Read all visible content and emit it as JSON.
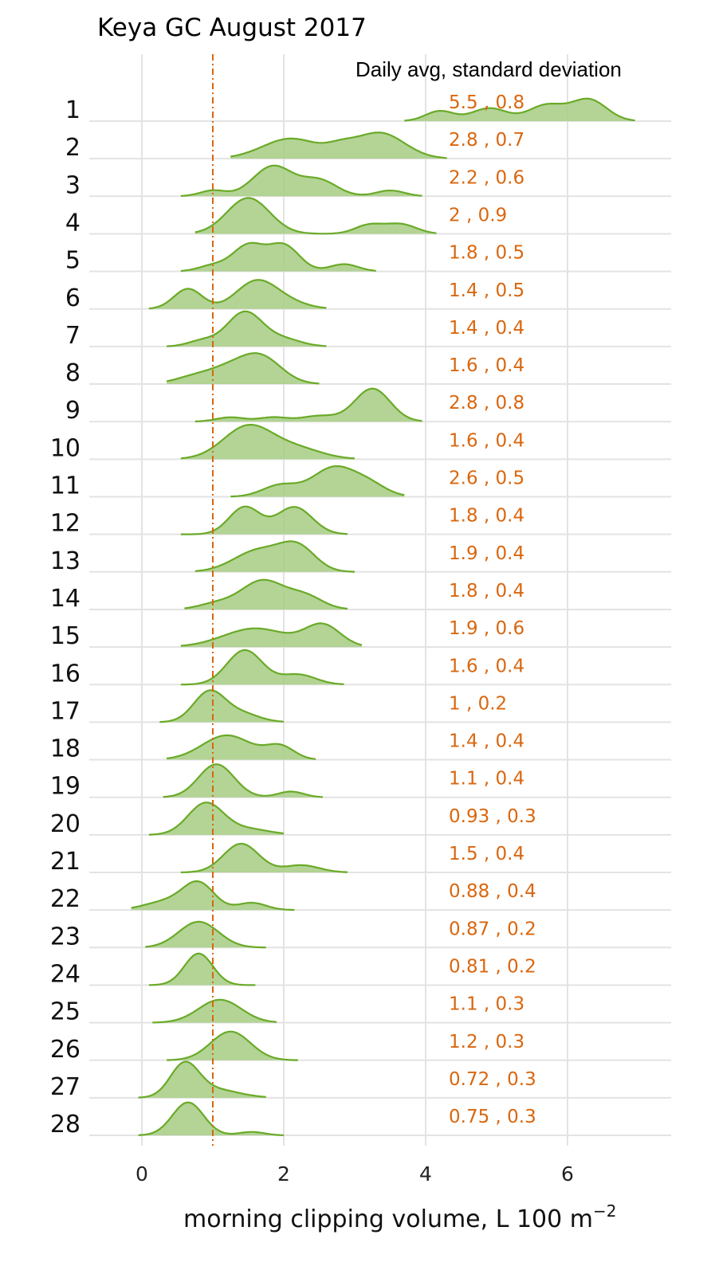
{
  "chart_data": {
    "type": "ridgeline",
    "title": "Keya GC August 2017",
    "subtitle": "Daily avg, standard deviation",
    "xlabel": "morning clipping volume, L 100 m",
    "xlabel_superscript": "−2",
    "xlim": [
      -0.7,
      7.5
    ],
    "xticks": [
      0,
      2,
      4,
      6
    ],
    "reference_line": 1,
    "colors": {
      "fill": "#a6cd82",
      "stroke": "#6aaa28",
      "reference": "#d9670f",
      "stat_text": "#d9670f",
      "grid": "#e3e3e3"
    },
    "rows": [
      {
        "day": "1",
        "stat": "5.5 , 0.8",
        "range": [
          3.7,
          6.95
        ],
        "peaks": [
          [
            4.2,
            0.35,
            0.2
          ],
          [
            4.9,
            0.45,
            0.25
          ],
          [
            5.7,
            0.55,
            0.25
          ],
          [
            6.3,
            0.75,
            0.25
          ]
        ]
      },
      {
        "day": "2",
        "stat": "2.8 , 0.7",
        "range": [
          1.25,
          4.3
        ],
        "peaks": [
          [
            2.1,
            0.7,
            0.4
          ],
          [
            2.8,
            0.25,
            0.2
          ],
          [
            3.35,
            0.9,
            0.35
          ]
        ]
      },
      {
        "day": "3",
        "stat": "2.2 , 0.6",
        "range": [
          0.55,
          3.95
        ],
        "peaks": [
          [
            1.0,
            0.2,
            0.18
          ],
          [
            1.85,
            1.05,
            0.28
          ],
          [
            2.5,
            0.55,
            0.25
          ],
          [
            3.5,
            0.2,
            0.2
          ]
        ]
      },
      {
        "day": "4",
        "stat": "2 , 0.9",
        "range": [
          0.75,
          4.15
        ],
        "peaks": [
          [
            1.5,
            1.25,
            0.3
          ],
          [
            3.2,
            0.3,
            0.2
          ],
          [
            3.65,
            0.33,
            0.22
          ]
        ]
      },
      {
        "day": "5",
        "stat": "1.8 , 0.5",
        "range": [
          0.55,
          3.3
        ],
        "peaks": [
          [
            1.0,
            0.2,
            0.2
          ],
          [
            1.5,
            0.9,
            0.22
          ],
          [
            2.0,
            0.9,
            0.22
          ],
          [
            2.85,
            0.25,
            0.2
          ]
        ]
      },
      {
        "day": "6",
        "stat": "1.4 , 0.5",
        "range": [
          0.1,
          2.6
        ],
        "peaks": [
          [
            0.65,
            0.7,
            0.2
          ],
          [
            1.6,
            0.9,
            0.28
          ],
          [
            2.0,
            0.25,
            0.3
          ]
        ]
      },
      {
        "day": "7",
        "stat": "1.4 , 0.4",
        "range": [
          0.35,
          2.6
        ],
        "peaks": [
          [
            0.85,
            0.2,
            0.2
          ],
          [
            1.45,
            1.2,
            0.25
          ],
          [
            2.0,
            0.25,
            0.25
          ]
        ]
      },
      {
        "day": "8",
        "stat": "1.6 , 0.4",
        "range": [
          0.35,
          2.5
        ],
        "peaks": [
          [
            0.8,
            0.3,
            0.3
          ],
          [
            1.65,
            1.0,
            0.3
          ],
          [
            1.2,
            0.3,
            0.25
          ]
        ]
      },
      {
        "day": "9",
        "stat": "2.8 , 0.8",
        "range": [
          0.75,
          3.95
        ],
        "peaks": [
          [
            1.25,
            0.15,
            0.2
          ],
          [
            1.85,
            0.15,
            0.2
          ],
          [
            2.5,
            0.2,
            0.25
          ],
          [
            3.25,
            1.15,
            0.25
          ]
        ]
      },
      {
        "day": "10",
        "stat": "1.6 , 0.4",
        "range": [
          0.55,
          3.0
        ],
        "peaks": [
          [
            1.5,
            1.15,
            0.35
          ],
          [
            2.2,
            0.35,
            0.35
          ]
        ]
      },
      {
        "day": "11",
        "stat": "2.6 , 0.5",
        "range": [
          1.25,
          3.7
        ],
        "peaks": [
          [
            1.95,
            0.4,
            0.25
          ],
          [
            2.7,
            1.0,
            0.3
          ],
          [
            3.2,
            0.4,
            0.25
          ]
        ]
      },
      {
        "day": "12",
        "stat": "1.8 , 0.4",
        "range": [
          0.55,
          2.9
        ],
        "peaks": [
          [
            1.45,
            0.95,
            0.22
          ],
          [
            2.15,
            0.95,
            0.25
          ]
        ]
      },
      {
        "day": "13",
        "stat": "1.9 , 0.4",
        "range": [
          0.75,
          3.0
        ],
        "peaks": [
          [
            1.65,
            0.75,
            0.35
          ],
          [
            2.2,
            0.8,
            0.25
          ]
        ]
      },
      {
        "day": "14",
        "stat": "1.8 , 0.4",
        "range": [
          0.6,
          2.9
        ],
        "peaks": [
          [
            1.7,
            1.0,
            0.3
          ],
          [
            2.3,
            0.45,
            0.25
          ],
          [
            1.05,
            0.2,
            0.25
          ]
        ]
      },
      {
        "day": "15",
        "stat": "1.9 , 0.6",
        "range": [
          0.55,
          3.1
        ],
        "peaks": [
          [
            1.6,
            0.65,
            0.45
          ],
          [
            2.55,
            0.75,
            0.25
          ]
        ]
      },
      {
        "day": "16",
        "stat": "1.6 , 0.4",
        "range": [
          0.55,
          2.85
        ],
        "peaks": [
          [
            1.45,
            1.2,
            0.25
          ],
          [
            2.2,
            0.35,
            0.25
          ]
        ]
      },
      {
        "day": "17",
        "stat": "1 , 0.2",
        "range": [
          0.25,
          2.0
        ],
        "peaks": [
          [
            0.95,
            1.05,
            0.22
          ],
          [
            1.4,
            0.3,
            0.25
          ]
        ]
      },
      {
        "day": "18",
        "stat": "1.4 , 0.4",
        "range": [
          0.35,
          2.45
        ],
        "peaks": [
          [
            1.2,
            0.85,
            0.35
          ],
          [
            1.95,
            0.45,
            0.2
          ]
        ]
      },
      {
        "day": "19",
        "stat": "1.1 , 0.4",
        "range": [
          0.3,
          2.55
        ],
        "peaks": [
          [
            1.05,
            1.15,
            0.25
          ],
          [
            2.1,
            0.2,
            0.18
          ]
        ]
      },
      {
        "day": "20",
        "stat": "0.93 , 0.3",
        "range": [
          0.1,
          2.0
        ],
        "peaks": [
          [
            0.9,
            1.1,
            0.25
          ],
          [
            1.5,
            0.2,
            0.3
          ]
        ]
      },
      {
        "day": "21",
        "stat": "1.5 , 0.4",
        "range": [
          0.55,
          2.9
        ],
        "peaks": [
          [
            1.4,
            1.0,
            0.25
          ],
          [
            2.25,
            0.25,
            0.25
          ]
        ]
      },
      {
        "day": "22",
        "stat": "0.88 , 0.4",
        "range": [
          -0.15,
          2.15
        ],
        "peaks": [
          [
            0.8,
            0.9,
            0.22
          ],
          [
            0.35,
            0.3,
            0.3
          ],
          [
            1.55,
            0.25,
            0.2
          ]
        ]
      },
      {
        "day": "23",
        "stat": "0.87 , 0.2",
        "range": [
          0.05,
          1.75
        ],
        "peaks": [
          [
            0.8,
            0.9,
            0.28
          ]
        ]
      },
      {
        "day": "24",
        "stat": "0.81 , 0.2",
        "range": [
          0.1,
          1.6
        ],
        "peaks": [
          [
            0.8,
            1.1,
            0.2
          ]
        ]
      },
      {
        "day": "25",
        "stat": "1.1 , 0.3",
        "range": [
          0.15,
          1.9
        ],
        "peaks": [
          [
            1.1,
            0.8,
            0.3
          ]
        ]
      },
      {
        "day": "26",
        "stat": "1.2 , 0.3",
        "range": [
          0.35,
          2.2
        ],
        "peaks": [
          [
            1.25,
            1.0,
            0.28
          ]
        ]
      },
      {
        "day": "27",
        "stat": "0.72 , 0.3",
        "range": [
          -0.05,
          1.75
        ],
        "peaks": [
          [
            0.6,
            1.1,
            0.2
          ],
          [
            1.0,
            0.3,
            0.35
          ]
        ]
      },
      {
        "day": "28",
        "stat": "0.75 , 0.3",
        "range": [
          -0.05,
          2.0
        ],
        "peaks": [
          [
            0.65,
            1.15,
            0.22
          ],
          [
            1.55,
            0.12,
            0.18
          ]
        ]
      }
    ]
  }
}
